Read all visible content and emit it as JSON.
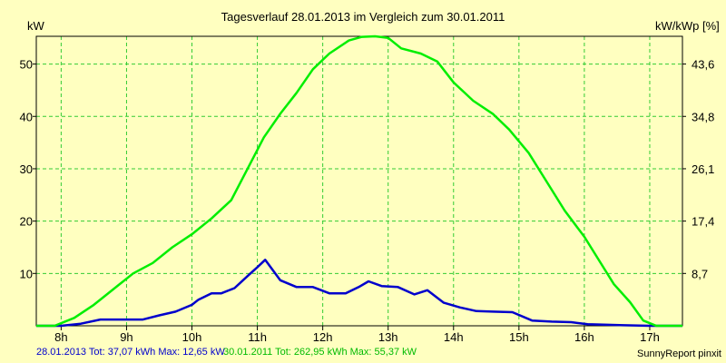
{
  "chart_data": {
    "type": "line",
    "title": "Tagesverlauf 28.01.2013 im Vergleich zum 30.01.2011",
    "ylabel_left": "kW",
    "ylabel_right": "kW/kWp [%]",
    "x_ticks": [
      "8h",
      "9h",
      "10h",
      "11h",
      "12h",
      "13h",
      "14h",
      "15h",
      "16h",
      "17h"
    ],
    "y_ticks_left": [
      "10",
      "20",
      "30",
      "40",
      "50"
    ],
    "y_ticks_right": [
      "8,7",
      "17,4",
      "26,1",
      "34,8",
      "43,6"
    ],
    "xlim": [
      7.62,
      17.5
    ],
    "ylim": [
      0,
      55.3
    ],
    "grid": true,
    "series": [
      {
        "name": "28.01.2013",
        "color": "#0000cc",
        "x": [
          7.62,
          8.0,
          8.3,
          8.6,
          8.9,
          9.25,
          9.5,
          9.75,
          10.0,
          10.1,
          10.3,
          10.45,
          10.65,
          10.85,
          11.0,
          11.12,
          11.35,
          11.6,
          11.85,
          12.1,
          12.35,
          12.55,
          12.7,
          12.9,
          13.15,
          13.4,
          13.6,
          13.85,
          14.1,
          14.35,
          14.6,
          14.9,
          15.2,
          15.5,
          15.8,
          16.05,
          16.3,
          16.6,
          17.0,
          17.5
        ],
        "y": [
          0,
          0,
          0.4,
          1.2,
          1.2,
          1.2,
          2.0,
          2.7,
          4.0,
          5.0,
          6.2,
          6.2,
          7.2,
          9.5,
          11.2,
          12.6,
          8.7,
          7.4,
          7.4,
          6.2,
          6.2,
          7.4,
          8.5,
          7.6,
          7.4,
          6.0,
          6.8,
          4.4,
          3.5,
          2.8,
          2.7,
          2.6,
          1.0,
          0.8,
          0.7,
          0.3,
          0.2,
          0.1,
          0,
          0
        ]
      },
      {
        "name": "30.01.2011",
        "color": "#00ee00",
        "x": [
          7.62,
          7.9,
          8.2,
          8.5,
          8.8,
          9.1,
          9.4,
          9.7,
          10.0,
          10.3,
          10.6,
          10.85,
          11.1,
          11.35,
          11.6,
          11.85,
          12.1,
          12.4,
          12.6,
          12.8,
          13.0,
          13.2,
          13.5,
          13.75,
          14.0,
          14.3,
          14.6,
          14.85,
          15.15,
          15.4,
          15.7,
          16.0,
          16.2,
          16.45,
          16.7,
          16.9,
          17.1,
          17.5
        ],
        "y": [
          0,
          0,
          1.5,
          4.0,
          7.0,
          10.0,
          12.0,
          15.0,
          17.5,
          20.5,
          24.0,
          30.0,
          36.0,
          40.5,
          44.5,
          49.0,
          52.0,
          54.5,
          55.2,
          55.3,
          55.0,
          53.0,
          52.0,
          50.5,
          46.5,
          43.0,
          40.5,
          37.5,
          33.0,
          28.0,
          22.0,
          17.0,
          13.0,
          8.0,
          4.5,
          1.0,
          0,
          0
        ]
      }
    ]
  },
  "footer": {
    "series1_summary": "28.01.2013 Tot: 37,07 kWh Max: 12,65 kW",
    "series2_summary": "30.01.2011 Tot: 262,95 kWh Max: 55,37 kW",
    "credit": "SunnyReport pinxit"
  }
}
